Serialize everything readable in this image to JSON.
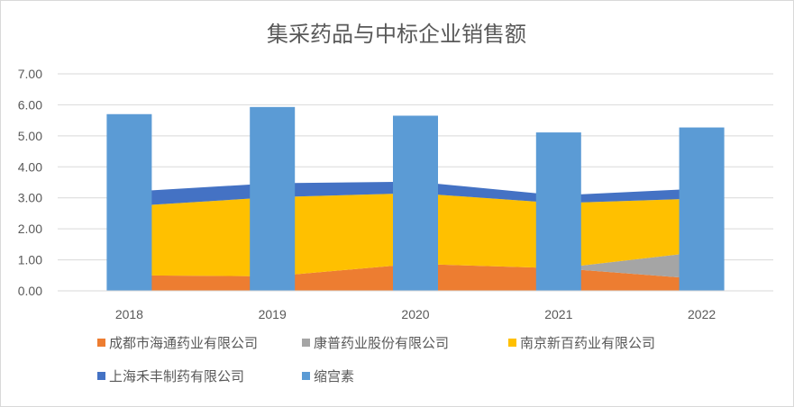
{
  "chart_data": {
    "type": "area",
    "title": "集采药品与中标企业销售额",
    "xlabel": "",
    "ylabel": "",
    "categories": [
      "2018",
      "2019",
      "2020",
      "2021",
      "2022"
    ],
    "ylim": [
      0,
      7
    ],
    "yticks": [
      "0.00",
      "1.00",
      "2.00",
      "3.00",
      "4.00",
      "5.00",
      "6.00",
      "7.00"
    ],
    "grid": true,
    "legend_position": "bottom",
    "stacked_area_series": [
      {
        "name": "成都市海通药业有限公司",
        "color": "#ED7D31",
        "values": [
          0.5,
          0.47,
          0.87,
          0.73,
          0.38
        ]
      },
      {
        "name": "康普药业股份有限公司",
        "color": "#A5A5A5",
        "values": [
          0.0,
          0.0,
          0.0,
          0.0,
          0.88
        ]
      },
      {
        "name": "南京新百药业有限公司",
        "color": "#FFC000",
        "values": [
          2.23,
          2.55,
          2.28,
          2.1,
          1.72
        ]
      },
      {
        "name": "上海禾丰制药有限公司",
        "color": "#4472C4",
        "values": [
          0.47,
          0.45,
          0.37,
          0.25,
          0.32
        ]
      }
    ],
    "bar_series": {
      "name": "缩宫素",
      "color": "#5B9BD5",
      "values": [
        5.7,
        5.93,
        5.65,
        5.11,
        5.27
      ]
    }
  }
}
